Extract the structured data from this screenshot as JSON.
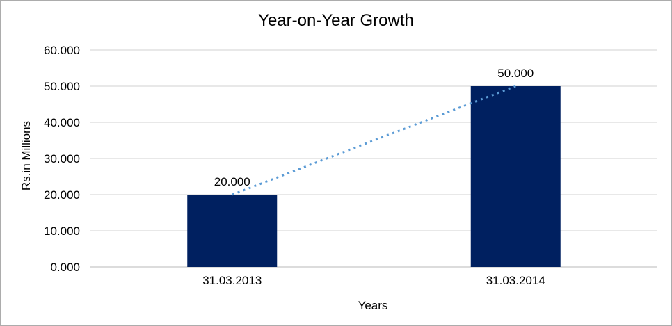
{
  "chart_data": {
    "type": "bar",
    "title": "Year-on-Year Growth",
    "categories": [
      "31.03.2013",
      "31.03.2014"
    ],
    "values": [
      20,
      50
    ],
    "value_labels": [
      "20.000",
      "50.000"
    ],
    "xlabel": "Years",
    "ylabel": "Rs.in Millions",
    "ylim": [
      0,
      60
    ],
    "ytick_interval": 10,
    "ytick_labels": [
      "0.000",
      "10.000",
      "20.000",
      "30.000",
      "40.000",
      "50.000",
      "60.000"
    ],
    "grid": true,
    "legend": "none",
    "bar_color": "#002060",
    "gridline_color": "#d9d9d9",
    "axis_line_color": "#c6c6c6",
    "text_color": "#000000",
    "frame_border_color": "#acacac",
    "background_color": "#ffffff",
    "trendline": {
      "type": "linear",
      "style": "dotted",
      "color": "#5b9bd5",
      "from_category": "31.03.2013",
      "to_category": "31.03.2014"
    }
  }
}
